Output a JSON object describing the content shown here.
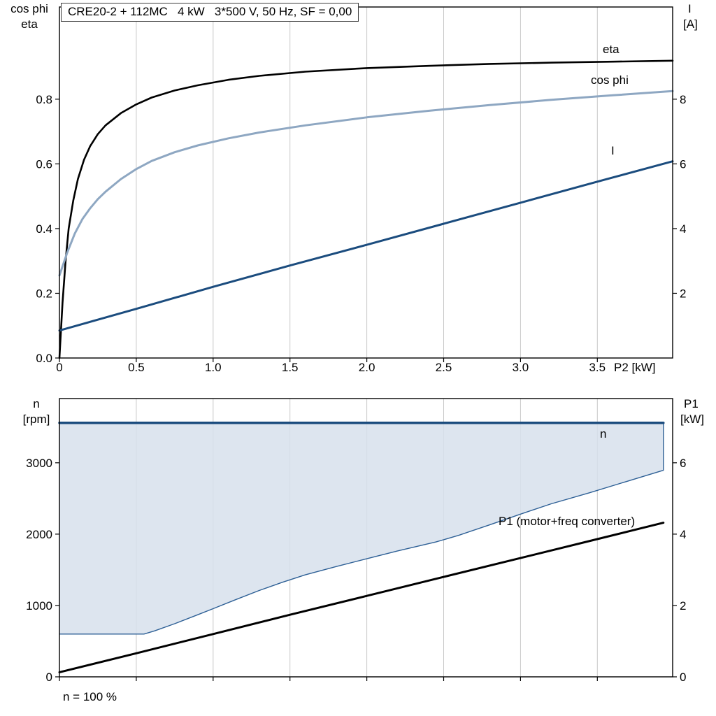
{
  "title_box": "CRE20-2 + 112MC   4 kW   3*500 V, 50 Hz, SF = 0,00",
  "colors": {
    "eta": "#000000",
    "cos_phi": "#8ea7c2",
    "current": "#1b4c7e",
    "n_envelope_fill": "#d7e1ec",
    "n_envelope_stroke": "#2e6096",
    "p1": "#000000",
    "grid": "#c8c8c8",
    "frame": "#000000",
    "text": "#000000"
  },
  "chart_data": [
    {
      "type": "line",
      "title": "CRE20-2 + 112MC   4 kW   3*500 V, 50 Hz, SF = 0,00",
      "xlabel": "P2 [kW]",
      "ylabel_left_lines": [
        "cos phi",
        "eta"
      ],
      "ylabel_right_lines": [
        "I",
        "[A]"
      ],
      "xlim": [
        0,
        3.99
      ],
      "ylim_left": [
        0,
        1.085
      ],
      "ylim_right": [
        0,
        10.85
      ],
      "grid": "vertical",
      "x_ticks": {
        "values": [
          0,
          0.5,
          1.0,
          1.5,
          2.0,
          2.5,
          3.0,
          3.5
        ],
        "labels": [
          "0",
          "0.5",
          "1.0",
          "1.5",
          "2.0",
          "2.5",
          "3.0",
          "3.5"
        ]
      },
      "left_ticks": {
        "values": [
          0.0,
          0.2,
          0.4,
          0.6,
          0.8
        ],
        "labels": [
          "0.0",
          "0.2",
          "0.4",
          "0.6",
          "0.8"
        ]
      },
      "right_ticks": {
        "values": [
          2,
          4,
          6,
          8
        ],
        "labels": [
          "2",
          "4",
          "6",
          "8"
        ]
      },
      "series": [
        {
          "name": "eta",
          "label": "eta",
          "axis": "left",
          "color_key": "eta",
          "width": 2.6,
          "points": [
            [
              0,
              0
            ],
            [
              0.02,
              0.17
            ],
            [
              0.04,
              0.3
            ],
            [
              0.06,
              0.4
            ],
            [
              0.09,
              0.487
            ],
            [
              0.12,
              0.553
            ],
            [
              0.16,
              0.613
            ],
            [
              0.2,
              0.655
            ],
            [
              0.25,
              0.692
            ],
            [
              0.3,
              0.719
            ],
            [
              0.4,
              0.757
            ],
            [
              0.5,
              0.784
            ],
            [
              0.6,
              0.805
            ],
            [
              0.75,
              0.827
            ],
            [
              0.9,
              0.843
            ],
            [
              1.1,
              0.86
            ],
            [
              1.3,
              0.872
            ],
            [
              1.6,
              0.885
            ],
            [
              2.0,
              0.896
            ],
            [
              2.4,
              0.903
            ],
            [
              2.8,
              0.909
            ],
            [
              3.2,
              0.913
            ],
            [
              3.6,
              0.916
            ],
            [
              3.99,
              0.919
            ]
          ]
        },
        {
          "name": "cos phi",
          "label": "cos phi",
          "axis": "left",
          "color_key": "cos_phi",
          "width": 3,
          "points": [
            [
              0,
              0.255
            ],
            [
              0.05,
              0.325
            ],
            [
              0.1,
              0.385
            ],
            [
              0.15,
              0.43
            ],
            [
              0.2,
              0.463
            ],
            [
              0.25,
              0.491
            ],
            [
              0.3,
              0.514
            ],
            [
              0.4,
              0.553
            ],
            [
              0.5,
              0.584
            ],
            [
              0.6,
              0.609
            ],
            [
              0.75,
              0.636
            ],
            [
              0.9,
              0.657
            ],
            [
              1.1,
              0.679
            ],
            [
              1.3,
              0.697
            ],
            [
              1.6,
              0.719
            ],
            [
              2.0,
              0.744
            ],
            [
              2.4,
              0.764
            ],
            [
              2.8,
              0.782
            ],
            [
              3.2,
              0.798
            ],
            [
              3.6,
              0.812
            ],
            [
              3.99,
              0.825
            ]
          ]
        },
        {
          "name": "I",
          "label": "I",
          "axis": "right",
          "color_key": "current",
          "width": 3,
          "points": [
            [
              0,
              0.85
            ],
            [
              0.5,
              1.52
            ],
            [
              1.0,
              2.2
            ],
            [
              1.5,
              2.86
            ],
            [
              2.0,
              3.5
            ],
            [
              2.5,
              4.15
            ],
            [
              3.0,
              4.8
            ],
            [
              3.5,
              5.45
            ],
            [
              3.99,
              6.08
            ]
          ]
        }
      ]
    },
    {
      "type": "area",
      "xlabel": "",
      "ylabel_left_lines": [
        "n",
        "[rpm]"
      ],
      "ylabel_right_lines": [
        "P1",
        "[kW]"
      ],
      "annotation": "n = 100 %",
      "xlim": [
        0,
        3.99
      ],
      "ylim_left": [
        0,
        3900
      ],
      "ylim_right": [
        0,
        7.8
      ],
      "grid": "vertical",
      "x_ticks": {
        "values": [
          0,
          0.5,
          1.0,
          1.5,
          2.0,
          2.5,
          3.0,
          3.5
        ],
        "labels": []
      },
      "left_ticks": {
        "values": [
          0,
          1000,
          2000,
          3000
        ],
        "labels": [
          "0",
          "1000",
          "2000",
          "3000"
        ]
      },
      "right_ticks": {
        "values": [
          0,
          2,
          4,
          6
        ],
        "labels": [
          "0",
          "2",
          "4",
          "6"
        ]
      },
      "n_region": {
        "label": "n",
        "axis": "left",
        "top_rpm": 3560,
        "x_end": 3.93,
        "lower_boundary": [
          [
            0,
            600
          ],
          [
            0.55,
            600
          ],
          [
            0.62,
            645
          ],
          [
            0.75,
            745
          ],
          [
            0.9,
            870
          ],
          [
            1.0,
            955
          ],
          [
            1.15,
            1085
          ],
          [
            1.3,
            1210
          ],
          [
            1.45,
            1325
          ],
          [
            1.6,
            1430
          ],
          [
            1.8,
            1545
          ],
          [
            2.0,
            1655
          ],
          [
            2.2,
            1765
          ],
          [
            2.45,
            1890
          ],
          [
            2.6,
            1985
          ],
          [
            2.8,
            2130
          ],
          [
            3.0,
            2280
          ],
          [
            3.2,
            2425
          ],
          [
            3.45,
            2580
          ],
          [
            3.7,
            2745
          ],
          [
            3.93,
            2895
          ]
        ]
      },
      "p1_series": {
        "label": "P1 (motor+freq converter)",
        "axis": "right",
        "color_key": "p1",
        "width": 3,
        "points": [
          [
            0,
            0.13
          ],
          [
            0.5,
            0.66
          ],
          [
            1.0,
            1.2
          ],
          [
            1.5,
            1.74
          ],
          [
            2.0,
            2.27
          ],
          [
            2.5,
            2.8
          ],
          [
            3.0,
            3.33
          ],
          [
            3.5,
            3.86
          ],
          [
            3.93,
            4.32
          ]
        ]
      }
    }
  ]
}
